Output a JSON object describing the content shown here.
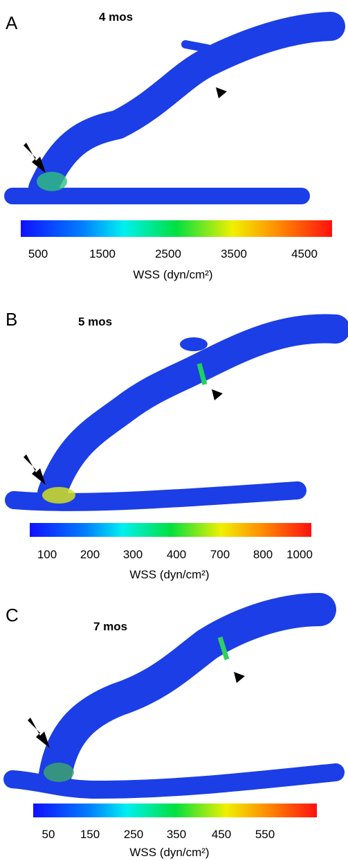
{
  "panels": [
    {
      "label": "A",
      "title": "4 mos",
      "colorbar": {
        "ticks": [
          "500",
          "1500",
          "2500",
          "3500",
          "4500"
        ],
        "label": "WSS (dyn/cm²)"
      }
    },
    {
      "label": "B",
      "title": "5 mos",
      "colorbar": {
        "ticks": [
          "100",
          "200",
          "300",
          "400",
          "700",
          "800",
          "1000"
        ],
        "label": "WSS (dyn/cm²)"
      }
    },
    {
      "label": "C",
      "title": "7 mos",
      "colorbar": {
        "ticks": [
          "50",
          "150",
          "250",
          "350",
          "450",
          "550"
        ],
        "label": "WSS (dyn/cm²)"
      }
    }
  ]
}
